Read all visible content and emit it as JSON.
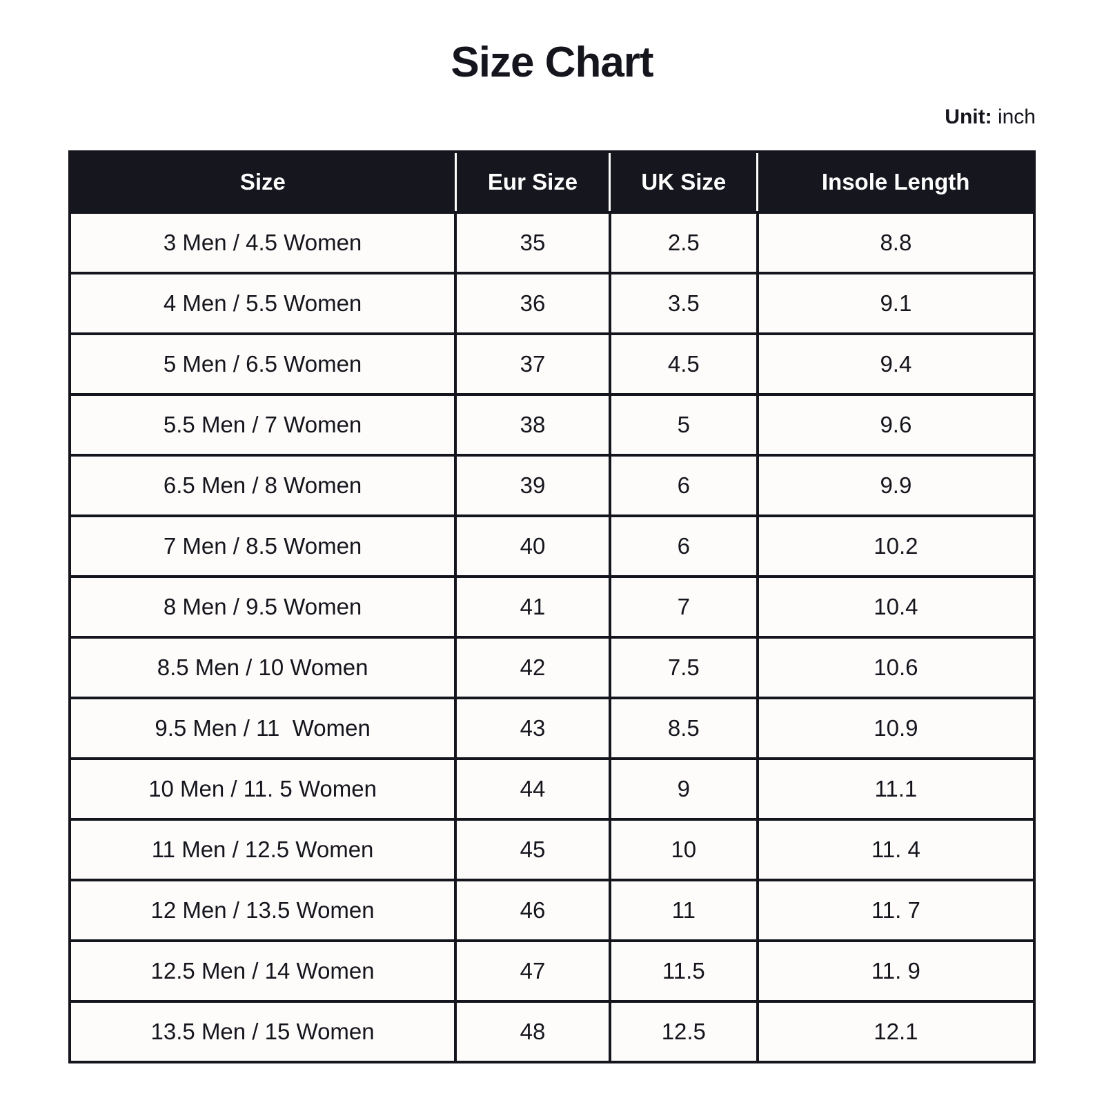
{
  "title": "Size Chart",
  "unit": {
    "label": "Unit:",
    "value": "inch"
  },
  "colors": {
    "header_bg": "#16161e",
    "header_text": "#ffffff",
    "border": "#15151d",
    "cell_bg": "#fdfcfa",
    "text": "#15151d"
  },
  "table": {
    "columns": [
      "Size",
      "Eur Size",
      "UK Size",
      "Insole Length"
    ],
    "column_keys": [
      "size",
      "eur-size",
      "uk-size",
      "insole-length"
    ],
    "rows": [
      [
        "3 Men / 4.5 Women",
        "35",
        "2.5",
        "8.8"
      ],
      [
        "4 Men / 5.5 Women",
        "36",
        "3.5",
        "9.1"
      ],
      [
        "5 Men / 6.5 Women",
        "37",
        "4.5",
        "9.4"
      ],
      [
        "5.5 Men / 7 Women",
        "38",
        "5",
        "9.6"
      ],
      [
        "6.5 Men / 8 Women",
        "39",
        "6",
        "9.9"
      ],
      [
        "7 Men / 8.5 Women",
        "40",
        "6",
        "10.2"
      ],
      [
        "8 Men / 9.5 Women",
        "41",
        "7",
        "10.4"
      ],
      [
        "8.5 Men / 10 Women",
        "42",
        "7.5",
        "10.6"
      ],
      [
        "9.5 Men / 11  Women",
        "43",
        "8.5",
        "10.9"
      ],
      [
        "10 Men / 11. 5 Women",
        "44",
        "9",
        "11.1"
      ],
      [
        "11 Men / 12.5 Women",
        "45",
        "10",
        "11. 4"
      ],
      [
        "12 Men / 13.5 Women",
        "46",
        "11",
        "11. 7"
      ],
      [
        "12.5 Men / 14 Women",
        "47",
        "11.5",
        "11. 9"
      ],
      [
        "13.5 Men / 15 Women",
        "48",
        "12.5",
        "12.1"
      ]
    ]
  }
}
